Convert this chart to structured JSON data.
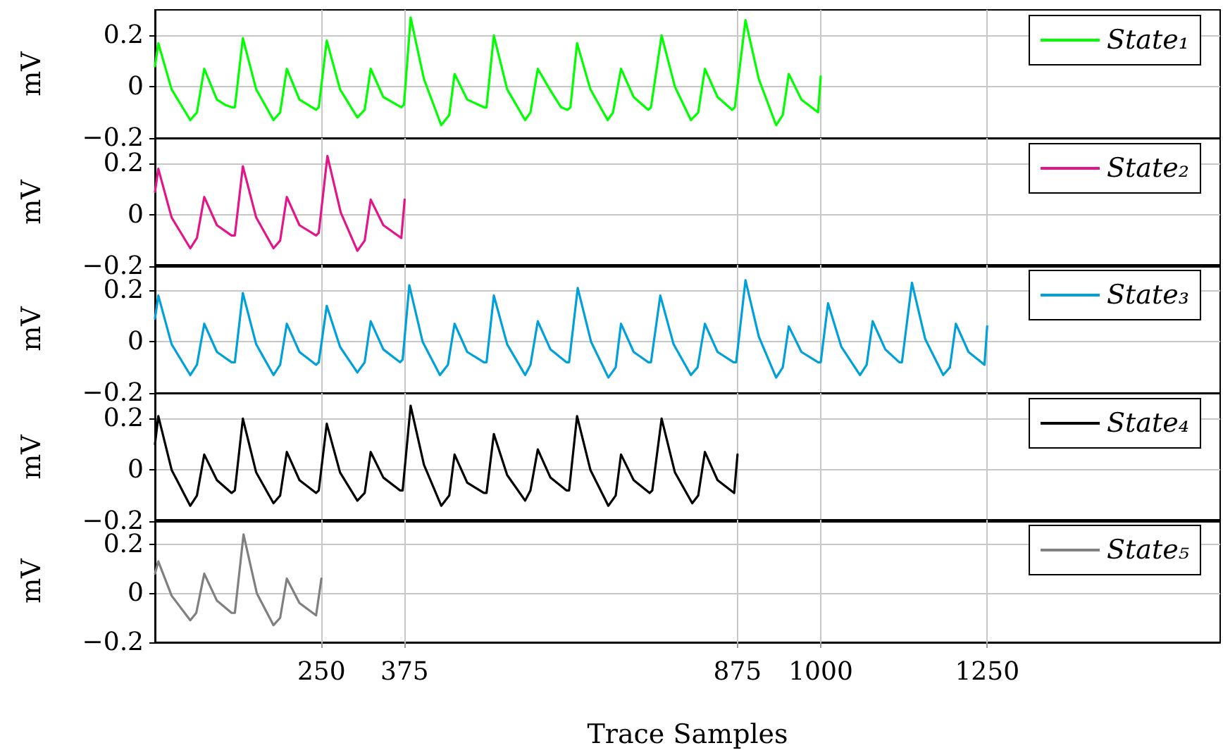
{
  "chart_data": [
    {
      "type": "line",
      "ylabel": "mV",
      "xlim": [
        0,
        1600
      ],
      "xticks": [
        250,
        375,
        875,
        1000,
        1250
      ],
      "ylim": [
        -0.2,
        0.3
      ],
      "yticks": [
        -0.2,
        0,
        0.2
      ],
      "grid": true,
      "legend": "top right",
      "marker": "none",
      "line_style": "solid",
      "tick_labels": "y",
      "x": [
        0,
        5,
        25,
        53,
        63,
        74,
        93,
        105,
        115,
        120,
        132,
        152,
        178,
        188,
        198,
        217,
        242,
        246,
        258,
        278,
        304,
        315,
        324,
        343,
        370,
        374,
        384,
        404,
        430,
        442,
        450,
        469,
        494,
        498,
        509,
        529,
        556,
        564,
        575,
        593,
        610,
        620,
        624,
        634,
        654,
        680,
        688,
        700,
        719,
        741,
        745,
        761,
        781,
        805,
        816,
        826,
        845,
        867,
        871,
        887,
        907,
        933,
        943,
        952,
        971,
        996,
        1000
      ],
      "series": [
        {
          "name": "State₁",
          "color": "#00ff00",
          "values": [
            0.08,
            0.17,
            -0.01,
            -0.13,
            -0.1,
            0.07,
            -0.05,
            -0.07,
            -0.08,
            -0.08,
            0.19,
            -0.01,
            -0.13,
            -0.1,
            0.07,
            -0.05,
            -0.09,
            -0.08,
            0.18,
            -0.01,
            -0.12,
            -0.09,
            0.07,
            -0.04,
            -0.08,
            -0.07,
            0.27,
            0.03,
            -0.15,
            -0.11,
            0.05,
            -0.05,
            -0.08,
            -0.08,
            0.2,
            -0.01,
            -0.13,
            -0.1,
            0.07,
            -0.01,
            -0.08,
            -0.09,
            -0.08,
            0.17,
            -0.01,
            -0.13,
            -0.1,
            0.07,
            -0.04,
            -0.09,
            -0.08,
            0.2,
            0.0,
            -0.13,
            -0.1,
            0.07,
            -0.04,
            -0.09,
            -0.08,
            0.26,
            0.03,
            -0.15,
            -0.11,
            0.05,
            -0.05,
            -0.1,
            0.04
          ]
        }
      ]
    },
    {
      "type": "line",
      "ylabel": "mV",
      "xlim": [
        0,
        1600
      ],
      "xticks": [
        250,
        375,
        875,
        1000,
        1250
      ],
      "ylim": [
        -0.2,
        0.3
      ],
      "yticks": [
        -0.2,
        0,
        0.2
      ],
      "grid": true,
      "legend": "top right",
      "marker": "none",
      "line_style": "solid",
      "tick_labels": "y",
      "x": [
        0,
        5,
        25,
        53,
        63,
        74,
        93,
        115,
        120,
        132,
        152,
        178,
        188,
        198,
        217,
        242,
        246,
        259,
        279,
        304,
        315,
        324,
        343,
        370,
        375
      ],
      "series": [
        {
          "name": "State₂",
          "color": "#e2168a",
          "values": [
            0.09,
            0.18,
            -0.01,
            -0.13,
            -0.09,
            0.07,
            -0.04,
            -0.08,
            -0.08,
            0.19,
            -0.01,
            -0.13,
            -0.1,
            0.07,
            -0.04,
            -0.08,
            -0.07,
            0.23,
            0.01,
            -0.14,
            -0.1,
            0.06,
            -0.04,
            -0.09,
            0.06
          ]
        }
      ]
    },
    {
      "type": "line",
      "ylabel": "mV",
      "xlim": [
        0,
        1600
      ],
      "xticks": [
        250,
        375,
        875,
        1000,
        1250
      ],
      "ylim": [
        -0.2,
        0.3
      ],
      "yticks": [
        -0.2,
        0,
        0.2
      ],
      "grid": true,
      "legend": "top right",
      "marker": "none",
      "line_style": "solid",
      "tick_labels": "y",
      "x": [
        0,
        5,
        25,
        53,
        63,
        74,
        93,
        115,
        120,
        132,
        152,
        178,
        188,
        198,
        217,
        242,
        246,
        258,
        278,
        304,
        315,
        324,
        343,
        368,
        372,
        382,
        402,
        428,
        440,
        450,
        469,
        494,
        498,
        509,
        529,
        556,
        564,
        575,
        594,
        618,
        622,
        635,
        655,
        681,
        692,
        700,
        719,
        741,
        745,
        759,
        779,
        805,
        815,
        826,
        845,
        869,
        873,
        887,
        907,
        933,
        943,
        952,
        971,
        996,
        1000,
        1011,
        1031,
        1059,
        1069,
        1078,
        1097,
        1118,
        1122,
        1137,
        1157,
        1184,
        1194,
        1203,
        1222,
        1246,
        1250
      ],
      "series": [
        {
          "name": "State₃",
          "color": "#00a0d8",
          "values": [
            0.09,
            0.18,
            -0.01,
            -0.13,
            -0.09,
            0.07,
            -0.04,
            -0.08,
            -0.08,
            0.19,
            -0.01,
            -0.13,
            -0.09,
            0.07,
            -0.04,
            -0.09,
            -0.08,
            0.14,
            -0.02,
            -0.12,
            -0.08,
            0.08,
            -0.03,
            -0.08,
            -0.07,
            0.22,
            0.0,
            -0.13,
            -0.09,
            0.07,
            -0.04,
            -0.08,
            -0.08,
            0.18,
            -0.01,
            -0.13,
            -0.09,
            0.08,
            -0.03,
            -0.08,
            -0.08,
            0.21,
            0.0,
            -0.14,
            -0.1,
            0.07,
            -0.04,
            -0.08,
            -0.08,
            0.18,
            -0.01,
            -0.13,
            -0.1,
            0.07,
            -0.04,
            -0.08,
            -0.08,
            0.24,
            0.02,
            -0.14,
            -0.1,
            0.06,
            -0.04,
            -0.08,
            -0.08,
            0.15,
            -0.02,
            -0.13,
            -0.09,
            0.08,
            -0.03,
            -0.08,
            -0.08,
            0.23,
            0.01,
            -0.13,
            -0.1,
            0.07,
            -0.04,
            -0.09,
            0.06
          ]
        }
      ]
    },
    {
      "type": "line",
      "ylabel": "mV",
      "xlim": [
        0,
        1600
      ],
      "xticks": [
        250,
        375,
        875,
        1000,
        1250
      ],
      "ylim": [
        -0.2,
        0.3
      ],
      "yticks": [
        -0.2,
        0,
        0.2
      ],
      "grid": true,
      "legend": "top right",
      "marker": "none",
      "line_style": "solid",
      "tick_labels": "y",
      "x": [
        0,
        5,
        25,
        53,
        63,
        74,
        93,
        115,
        120,
        132,
        152,
        178,
        188,
        198,
        217,
        242,
        246,
        258,
        278,
        304,
        315,
        324,
        343,
        368,
        372,
        384,
        404,
        430,
        442,
        450,
        469,
        494,
        498,
        509,
        529,
        556,
        564,
        575,
        594,
        618,
        622,
        634,
        654,
        681,
        692,
        700,
        719,
        743,
        747,
        761,
        781,
        807,
        816,
        826,
        845,
        870,
        875
      ],
      "series": [
        {
          "name": "State₄",
          "color": "#000000",
          "values": [
            0.1,
            0.21,
            0.0,
            -0.14,
            -0.1,
            0.06,
            -0.04,
            -0.09,
            -0.08,
            0.2,
            -0.01,
            -0.13,
            -0.1,
            0.07,
            -0.04,
            -0.09,
            -0.08,
            0.18,
            -0.01,
            -0.12,
            -0.09,
            0.07,
            -0.03,
            -0.08,
            -0.08,
            0.25,
            0.02,
            -0.14,
            -0.1,
            0.06,
            -0.05,
            -0.09,
            -0.09,
            0.14,
            -0.02,
            -0.12,
            -0.08,
            0.08,
            -0.03,
            -0.08,
            -0.08,
            0.21,
            0.0,
            -0.14,
            -0.1,
            0.06,
            -0.04,
            -0.09,
            -0.08,
            0.2,
            -0.01,
            -0.13,
            -0.1,
            0.07,
            -0.04,
            -0.09,
            0.06
          ]
        }
      ]
    },
    {
      "type": "line",
      "ylabel": "mV",
      "xlabel": "Trace Samples",
      "xlim": [
        0,
        1600
      ],
      "xticks": [
        250,
        375,
        875,
        1000,
        1250
      ],
      "ylim": [
        -0.2,
        0.3
      ],
      "yticks": [
        -0.2,
        0,
        0.2
      ],
      "grid": true,
      "legend": "top right",
      "marker": "none",
      "line_style": "solid",
      "x": [
        0,
        5,
        25,
        53,
        62,
        74,
        93,
        115,
        120,
        133,
        153,
        178,
        188,
        198,
        217,
        242,
        250
      ],
      "series": [
        {
          "name": "State₅",
          "color": "#808080",
          "values": [
            0.08,
            0.13,
            -0.01,
            -0.11,
            -0.08,
            0.08,
            -0.03,
            -0.08,
            -0.08,
            0.24,
            0.0,
            -0.13,
            -0.1,
            0.06,
            -0.04,
            -0.09,
            0.06
          ]
        }
      ]
    }
  ]
}
